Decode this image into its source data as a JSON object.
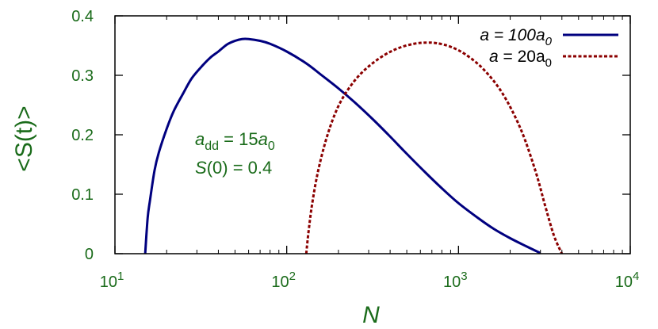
{
  "chart_data": {
    "type": "line",
    "x_scale": "log",
    "xlim": [
      10,
      10000
    ],
    "ylim": [
      0,
      0.4
    ],
    "grid": false,
    "legend_placement": "top-right",
    "xlabel": "N",
    "ylabel": "<S(t)>",
    "y_ticks": [
      "0",
      "0.1",
      "0.2",
      "0.3",
      "0.4"
    ],
    "x_ticks": [
      {
        "base": "10",
        "exp": "1"
      },
      {
        "base": "10",
        "exp": "2"
      },
      {
        "base": "10",
        "exp": "3"
      },
      {
        "base": "10",
        "exp": "4"
      }
    ],
    "annotation": {
      "line1": {
        "var": "a",
        "sub": "dd",
        "eq": " = 15",
        "var2": "a",
        "sub2": "0"
      },
      "line2": {
        "var": "S",
        "rest": "(0) = 0.4"
      }
    },
    "series": [
      {
        "legend": {
          "var": "a",
          "rest": " = 100a",
          "sub": "0"
        },
        "color": "#00007f",
        "dash": "solid",
        "x": [
          15,
          15.5,
          16,
          17,
          18,
          20,
          22,
          25,
          28,
          32,
          36,
          40,
          45,
          50,
          55,
          60,
          70,
          80,
          100,
          130,
          160,
          200,
          250,
          320,
          400,
          500,
          650,
          800,
          1000,
          1300,
          1600,
          2000,
          2500,
          3000
        ],
        "y": [
          0.0,
          0.06,
          0.09,
          0.14,
          0.17,
          0.21,
          0.24,
          0.27,
          0.295,
          0.315,
          0.33,
          0.34,
          0.352,
          0.358,
          0.361,
          0.361,
          0.358,
          0.353,
          0.34,
          0.32,
          0.3,
          0.278,
          0.254,
          0.225,
          0.197,
          0.168,
          0.135,
          0.11,
          0.085,
          0.06,
          0.042,
          0.026,
          0.012,
          0.001
        ]
      },
      {
        "legend": {
          "var": "a",
          "rest": " = 20a",
          "sub": "0"
        },
        "color": "#8b0000",
        "dash": "dotted",
        "x": [
          130,
          132,
          135,
          140,
          150,
          165,
          185,
          210,
          250,
          300,
          370,
          450,
          550,
          650,
          750,
          900,
          1100,
          1400,
          1800,
          2300,
          2800,
          3200,
          3600,
          4000
        ],
        "y": [
          0.0,
          0.02,
          0.045,
          0.08,
          0.13,
          0.18,
          0.225,
          0.26,
          0.292,
          0.315,
          0.334,
          0.346,
          0.353,
          0.355,
          0.354,
          0.348,
          0.335,
          0.31,
          0.27,
          0.21,
          0.14,
          0.08,
          0.03,
          0.0
        ]
      }
    ]
  }
}
